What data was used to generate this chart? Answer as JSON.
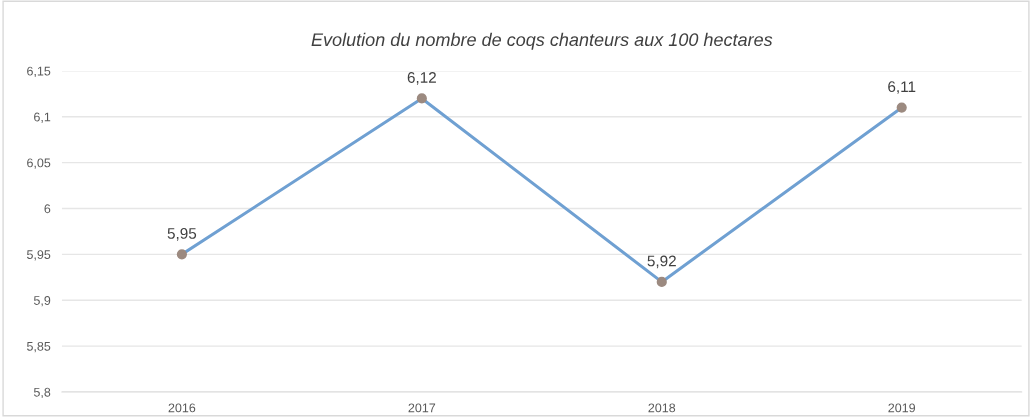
{
  "chart_data": {
    "type": "line",
    "title": "Evolution du nombre de coqs chanteurs aux 100 hectares",
    "categories": [
      "2016",
      "2017",
      "2018",
      "2019"
    ],
    "series": [
      {
        "color": "#6fa0d2",
        "colors": [
          "#9c8a80",
          "#9c8a80",
          "#9c8a80",
          "#9c8a80"
        ],
        "values": [
          5.95,
          6.12,
          5.92,
          6.11
        ],
        "value_labels": [
          "5,95",
          "6,12",
          "5,92",
          "6,11"
        ]
      }
    ],
    "ylim": [
      5.8,
      6.15
    ],
    "yticks": [
      {
        "value": 5.8,
        "label": "5,8"
      },
      {
        "value": 5.85,
        "label": "5,85"
      },
      {
        "value": 5.9,
        "label": "5,9"
      },
      {
        "value": 5.95,
        "label": "5,95"
      },
      {
        "value": 6,
        "label": "6"
      },
      {
        "value": 6.05,
        "label": "6,05"
      },
      {
        "value": 6.1,
        "label": "6,1"
      },
      {
        "value": 6.15,
        "label": "6,15"
      }
    ],
    "grid": "y",
    "marker": "circle",
    "line_style": "solid"
  }
}
